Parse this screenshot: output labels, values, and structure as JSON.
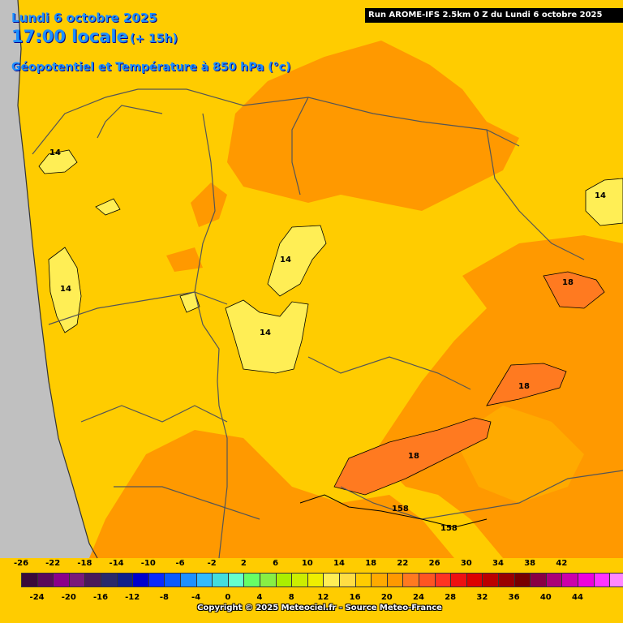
{
  "header": {
    "date": "Lundi 6 octobre 2025",
    "time": "17:00 locale",
    "lead": "(+ 15h)",
    "parameter": "Géopotentiel et Température à 850 hPa (°c)",
    "run": "Run AROME-IFS 2.5km 0 Z du Lundi 6 octobre 2025"
  },
  "contour_labels": [
    {
      "text": "14",
      "name": "isotherm-14-west-coast"
    },
    {
      "text": "14",
      "name": "isotherm-14-galicia-west"
    },
    {
      "text": "14",
      "name": "isotherm-14-central-north"
    },
    {
      "text": "14",
      "name": "isotherm-14-central"
    },
    {
      "text": "14",
      "name": "isotherm-14-east"
    },
    {
      "text": "18",
      "name": "isotherm-18-east"
    },
    {
      "text": "18",
      "name": "isotherm-18-southeast"
    },
    {
      "text": "18",
      "name": "isotherm-18-south"
    },
    {
      "text": "158",
      "name": "geopotential-158-a"
    },
    {
      "text": "158",
      "name": "geopotential-158-b"
    }
  ],
  "legend": {
    "top_ticks": [
      "-26",
      "-22",
      "-18",
      "-14",
      "-10",
      "-6",
      "-2",
      "2",
      "6",
      "10",
      "14",
      "18",
      "22",
      "26",
      "30",
      "34",
      "38",
      "42"
    ],
    "bottom_ticks": [
      "-24",
      "-20",
      "-16",
      "-12",
      "-8",
      "-4",
      "0",
      "4",
      "8",
      "12",
      "16",
      "20",
      "24",
      "28",
      "32",
      "36",
      "40",
      "44"
    ],
    "colors": [
      "#3a0a3a",
      "#5a0a5a",
      "#8a008a",
      "#7a1a7a",
      "#4a1a5a",
      "#2a2a6a",
      "#10208a",
      "#0000cc",
      "#0a2aff",
      "#0a5aff",
      "#1e90ff",
      "#33bbff",
      "#44dddd",
      "#66ffcc",
      "#66ff66",
      "#88ee44",
      "#aaee00",
      "#ccee00",
      "#eeee00",
      "#ffee55",
      "#ffdd44",
      "#ffcc00",
      "#ffaa00",
      "#ff9900",
      "#ff7a20",
      "#ff5522",
      "#ff3322",
      "#ee1111",
      "#dd0000",
      "#bb0000",
      "#990000",
      "#770000",
      "#880044",
      "#aa0077",
      "#cc00aa",
      "#ee00dd",
      "#ff33ff",
      "#ff88ff"
    ]
  },
  "copyright": "Copyright © 2025 Meteociel.fr - Source Meteo-France"
}
